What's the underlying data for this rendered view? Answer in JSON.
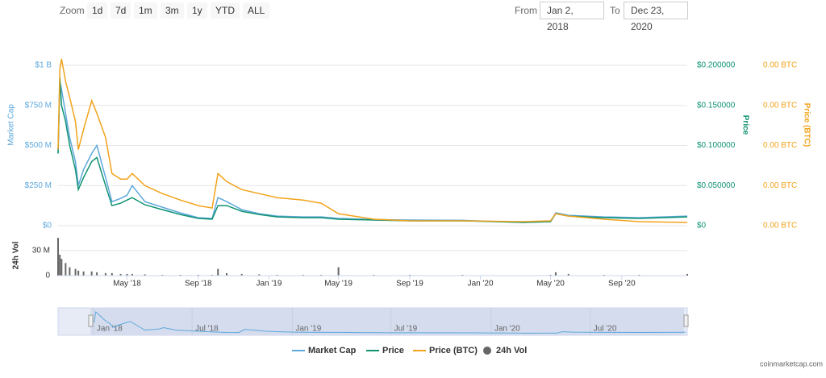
{
  "zoom": {
    "label": "Zoom",
    "buttons": [
      "1d",
      "7d",
      "1m",
      "3m",
      "1y",
      "YTD",
      "ALL"
    ]
  },
  "range": {
    "from_label": "From",
    "from": "Jan 2, 2018",
    "to_label": "To",
    "to": "Dec 23, 2020"
  },
  "chart_data": {
    "type": "line",
    "x": [
      "2018-01-02",
      "2018-01-05",
      "2018-01-08",
      "2018-01-15",
      "2018-01-22",
      "2018-02-01",
      "2018-02-06",
      "2018-02-15",
      "2018-03-01",
      "2018-03-10",
      "2018-03-25",
      "2018-04-05",
      "2018-04-20",
      "2018-05-01",
      "2018-05-10",
      "2018-06-01",
      "2018-07-01",
      "2018-08-01",
      "2018-09-01",
      "2018-09-25",
      "2018-10-05",
      "2018-10-20",
      "2018-11-15",
      "2018-12-15",
      "2019-01-15",
      "2019-03-01",
      "2019-04-01",
      "2019-05-01",
      "2019-07-01",
      "2019-09-01",
      "2019-12-01",
      "2020-03-15",
      "2020-05-01",
      "2020-05-10",
      "2020-06-01",
      "2020-08-01",
      "2020-10-01",
      "2020-12-23"
    ],
    "xlim": [
      "2018-01-02",
      "2020-12-23"
    ],
    "xticks": [
      {
        "value": "2018-05-01",
        "label": "May '18"
      },
      {
        "value": "2018-09-01",
        "label": "Sep '18"
      },
      {
        "value": "2019-01-01",
        "label": "Jan '19"
      },
      {
        "value": "2019-05-01",
        "label": "May '19"
      },
      {
        "value": "2019-09-01",
        "label": "Sep '19"
      },
      {
        "value": "2020-01-01",
        "label": "Jan '20"
      },
      {
        "value": "2020-05-01",
        "label": "May '20"
      },
      {
        "value": "2020-09-01",
        "label": "Sep '20"
      }
    ],
    "y_label": "Market Cap",
    "ylim": [
      0,
      1000000000
    ],
    "yticks": [
      {
        "value": 0,
        "label": "$0"
      },
      {
        "value": 250000000,
        "label": "$250 M"
      },
      {
        "value": 500000000,
        "label": "$500 M"
      },
      {
        "value": 750000000,
        "label": "$750 M"
      },
      {
        "value": 1000000000,
        "label": "$1 B"
      }
    ],
    "y2_label": "Price",
    "y2lim": [
      0,
      0.2
    ],
    "y2ticks": [
      {
        "value": 0,
        "label": "$0"
      },
      {
        "value": 0.05,
        "label": "$0.050000"
      },
      {
        "value": 0.1,
        "label": "$0.100000"
      },
      {
        "value": 0.15,
        "label": "$0.150000"
      },
      {
        "value": 0.2,
        "label": "$0.200000"
      }
    ],
    "y3_label": "Price (BTC)",
    "y3lim": [
      0,
      2e-05
    ],
    "y3ticks": [
      {
        "value": 0,
        "label": "0.00 BTC"
      },
      {
        "value": 5e-06,
        "label": "0.00 BTC"
      },
      {
        "value": 1e-05,
        "label": "0.00 BTC"
      },
      {
        "value": 1.5e-05,
        "label": "0.00 BTC"
      },
      {
        "value": 2e-05,
        "label": "0.00 BTC"
      }
    ],
    "series": [
      {
        "name": "Market Cap",
        "color": "#5ea8dc",
        "values": [
          450000000,
          900000000,
          850000000,
          700000000,
          550000000,
          400000000,
          250000000,
          350000000,
          450000000,
          500000000,
          300000000,
          150000000,
          170000000,
          190000000,
          250000000,
          150000000,
          115000000,
          80000000,
          50000000,
          45000000,
          175000000,
          150000000,
          100000000,
          75000000,
          60000000,
          55000000,
          55000000,
          45000000,
          38000000,
          35000000,
          33000000,
          20000000,
          25000000,
          80000000,
          65000000,
          55000000,
          50000000,
          60000000
        ]
      },
      {
        "name": "Price",
        "color": "#109373",
        "axis": "y2",
        "values": [
          0.09,
          0.185,
          0.15,
          0.13,
          0.1,
          0.07,
          0.045,
          0.06,
          0.08,
          0.085,
          0.05,
          0.025,
          0.028,
          0.032,
          0.035,
          0.026,
          0.02,
          0.014,
          0.009,
          0.008,
          0.025,
          0.025,
          0.018,
          0.014,
          0.011,
          0.01,
          0.01,
          0.008,
          0.007,
          0.006,
          0.006,
          0.004,
          0.005,
          0.015,
          0.012,
          0.01,
          0.009,
          0.011
        ]
      },
      {
        "name": "Price (BTC)",
        "color": "#f2a31b",
        "axis": "y3",
        "values": [
          9.5e-06,
          1.95e-05,
          2.08e-05,
          1.8e-05,
          1.6e-05,
          1.3e-05,
          9.5e-06,
          1.2e-05,
          1.56e-05,
          1.4e-05,
          1.1e-05,
          6.5e-06,
          5.8e-06,
          5.8e-06,
          6.5e-06,
          5e-06,
          4e-06,
          3.2e-06,
          2.5e-06,
          2.2e-06,
          6.5e-06,
          5.5e-06,
          4.5e-06,
          4e-06,
          3.5e-06,
          3.2e-06,
          2.8e-06,
          1.5e-06,
          8e-07,
          6e-07,
          6e-07,
          5e-07,
          6e-07,
          1.5e-06,
          1.2e-06,
          8e-07,
          5e-07,
          4e-07
        ]
      }
    ],
    "volume": {
      "name": "24h Vol",
      "color": "#666666",
      "y_label": "24h Vol",
      "ylim": [
        0,
        48000000
      ],
      "yticks": [
        0,
        {
          "value": 30000000,
          "label": "30 M"
        }
      ],
      "values": [
        45000000,
        25000000,
        20000000,
        15000000,
        10000000,
        8000000,
        6000000,
        5000000,
        5000000,
        4000000,
        3000000,
        3000000,
        2000000,
        2000000,
        2000000,
        1500000,
        1000000,
        1000000,
        1000000,
        1000000,
        8000000,
        3000000,
        2000000,
        1500000,
        1000000,
        1000000,
        1000000,
        10000000,
        1000000,
        1000000,
        1000000,
        500000,
        1000000,
        4000000,
        2000000,
        1000000,
        1000000,
        2000000
      ]
    },
    "navigator": {
      "xlim": [
        "2017-10-28",
        "2020-12-26"
      ],
      "xticks": [
        {
          "value": "2018-01-01",
          "label": "Jan '18"
        },
        {
          "value": "2018-07-01",
          "label": "Jul '18"
        },
        {
          "value": "2019-01-01",
          "label": "Jan '19"
        },
        {
          "value": "2019-07-01",
          "label": "Jul '19"
        },
        {
          "value": "2020-01-01",
          "label": "Jan '20"
        },
        {
          "value": "2020-07-01",
          "label": "Jul '20"
        }
      ]
    }
  },
  "credit": "coinmarketcap.com"
}
